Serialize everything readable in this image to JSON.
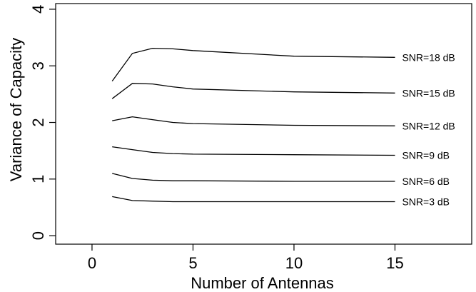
{
  "chart_data": {
    "type": "line",
    "title": "",
    "xlabel": "Number of Antennas",
    "ylabel": "Variance of Capacity",
    "xlim": [
      -1.8,
      18.8
    ],
    "ylim": [
      -0.15,
      4.1
    ],
    "xticks": [
      0,
      5,
      10,
      15
    ],
    "yticks": [
      0,
      1,
      2,
      3,
      4
    ],
    "grid": false,
    "legend": "none (labels at right end of each line)",
    "series": [
      {
        "name": "SNR=18 dB",
        "x": [
          1,
          2,
          3,
          4,
          5,
          10,
          15
        ],
        "values": [
          2.73,
          3.22,
          3.31,
          3.3,
          3.27,
          3.17,
          3.15
        ]
      },
      {
        "name": "SNR=15 dB",
        "x": [
          1,
          2,
          3,
          4,
          5,
          10,
          15
        ],
        "values": [
          2.42,
          2.69,
          2.68,
          2.63,
          2.59,
          2.54,
          2.52
        ]
      },
      {
        "name": "SNR=12 dB",
        "x": [
          1,
          2,
          3,
          4,
          5,
          10,
          15
        ],
        "values": [
          2.03,
          2.1,
          2.05,
          2.0,
          1.98,
          1.95,
          1.94
        ]
      },
      {
        "name": "SNR=9 dB",
        "x": [
          1,
          2,
          3,
          4,
          5,
          10,
          15
        ],
        "values": [
          1.57,
          1.52,
          1.47,
          1.45,
          1.44,
          1.43,
          1.42
        ]
      },
      {
        "name": "SNR=6 dB",
        "x": [
          1,
          2,
          3,
          4,
          5,
          10,
          15
        ],
        "values": [
          1.1,
          1.01,
          0.98,
          0.97,
          0.97,
          0.96,
          0.96
        ]
      },
      {
        "name": "SNR=3 dB",
        "x": [
          1,
          2,
          3,
          4,
          5,
          10,
          15
        ],
        "values": [
          0.69,
          0.62,
          0.61,
          0.6,
          0.6,
          0.6,
          0.6
        ]
      }
    ]
  }
}
